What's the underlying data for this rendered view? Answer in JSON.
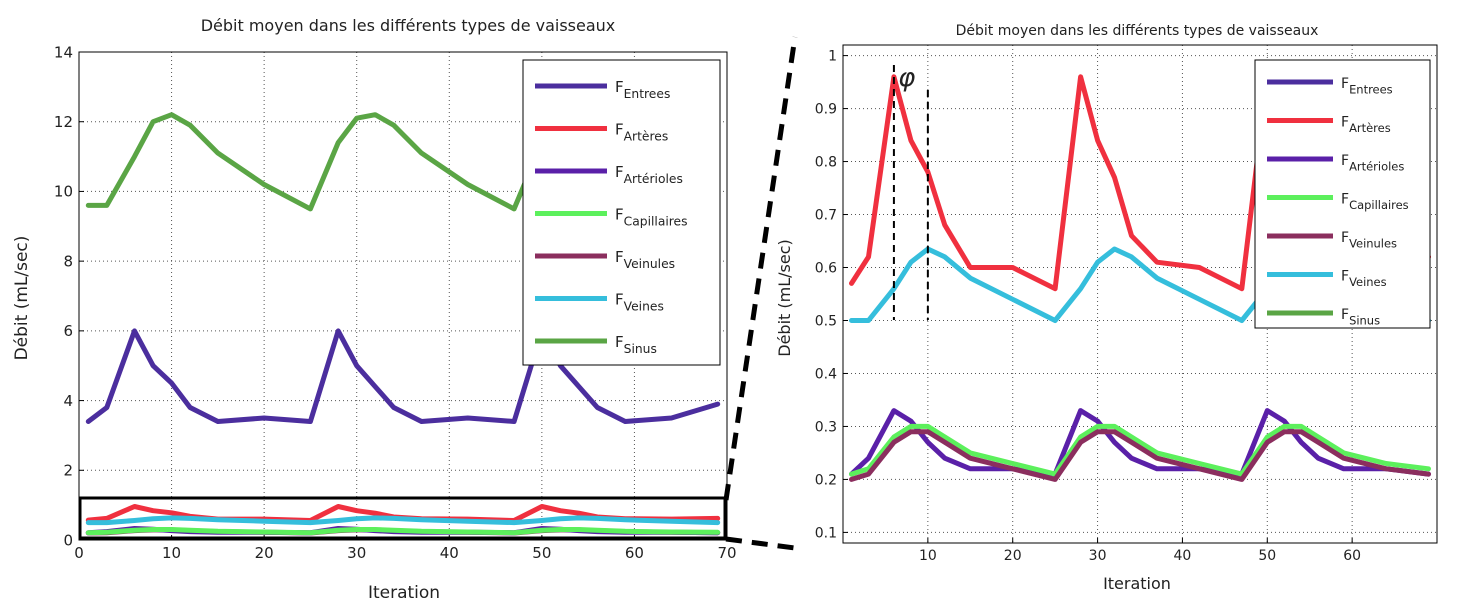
{
  "colors": {
    "entrees": "#4B2E9E",
    "arteres": "#F0303F",
    "arterioles": "#5A20A8",
    "capillaires": "#5CF05C",
    "veinules": "#8B2E5E",
    "veines": "#35BEDC",
    "sinus": "#5AA545"
  },
  "chart_data": [
    {
      "type": "line",
      "title": "Débit moyen dans les différents types de vaisseaux",
      "xlabel": "Iteration",
      "ylabel": "Débit (mL/sec)",
      "xlim": [
        0,
        70
      ],
      "ylim": [
        0,
        14
      ],
      "xticks": [
        0,
        10,
        20,
        30,
        40,
        50,
        60,
        70
      ],
      "yticks": [
        0,
        2,
        4,
        6,
        8,
        10,
        12,
        14
      ],
      "grid": true,
      "legend_position": "top-right",
      "x": [
        1,
        3,
        6,
        8,
        10,
        12,
        15,
        20,
        25,
        28,
        30,
        32,
        34,
        37,
        42,
        47,
        50,
        52,
        54,
        56,
        59,
        64,
        69
      ],
      "series": [
        {
          "name": "F",
          "sub": "Entrees",
          "color_key": "entrees",
          "values": [
            3.4,
            3.8,
            6.0,
            5.0,
            4.5,
            3.8,
            3.4,
            3.5,
            3.4,
            6.0,
            5.0,
            4.4,
            3.8,
            3.4,
            3.5,
            3.4,
            6.0,
            5.0,
            4.4,
            3.8,
            3.4,
            3.5,
            3.9
          ]
        },
        {
          "name": "F",
          "sub": "Artères",
          "color_key": "arteres",
          "values": [
            0.57,
            0.62,
            0.96,
            0.84,
            0.78,
            0.68,
            0.6,
            0.6,
            0.56,
            0.96,
            0.84,
            0.77,
            0.66,
            0.61,
            0.6,
            0.56,
            0.96,
            0.84,
            0.77,
            0.66,
            0.61,
            0.6,
            0.62
          ]
        },
        {
          "name": "F",
          "sub": "Artérioles",
          "color_key": "arterioles",
          "values": [
            0.21,
            0.24,
            0.33,
            0.31,
            0.27,
            0.24,
            0.22,
            0.22,
            0.21,
            0.33,
            0.31,
            0.27,
            0.24,
            0.22,
            0.22,
            0.21,
            0.33,
            0.31,
            0.27,
            0.24,
            0.22,
            0.22,
            0.21
          ]
        },
        {
          "name": "F",
          "sub": "Capillaires",
          "color_key": "capillaires",
          "values": [
            0.21,
            0.22,
            0.28,
            0.3,
            0.3,
            0.28,
            0.25,
            0.23,
            0.21,
            0.28,
            0.3,
            0.3,
            0.28,
            0.25,
            0.23,
            0.21,
            0.28,
            0.3,
            0.3,
            0.28,
            0.25,
            0.23,
            0.22
          ]
        },
        {
          "name": "F",
          "sub": "Veinules",
          "color_key": "veinules",
          "values": [
            0.2,
            0.21,
            0.27,
            0.29,
            0.29,
            0.27,
            0.24,
            0.22,
            0.2,
            0.27,
            0.29,
            0.29,
            0.27,
            0.24,
            0.22,
            0.2,
            0.27,
            0.29,
            0.29,
            0.27,
            0.24,
            0.22,
            0.21
          ]
        },
        {
          "name": "F",
          "sub": "Veines",
          "color_key": "veines",
          "values": [
            0.5,
            0.5,
            0.56,
            0.61,
            0.635,
            0.62,
            0.58,
            0.54,
            0.5,
            0.56,
            0.61,
            0.635,
            0.62,
            0.58,
            0.54,
            0.5,
            0.56,
            0.61,
            0.635,
            0.62,
            0.58,
            0.54,
            0.5
          ]
        },
        {
          "name": "F",
          "sub": "Sinus",
          "color_key": "sinus",
          "values": [
            9.6,
            9.6,
            11.0,
            12.0,
            12.2,
            11.9,
            11.1,
            10.2,
            9.5,
            11.4,
            12.1,
            12.2,
            11.9,
            11.1,
            10.2,
            9.5,
            11.4,
            12.1,
            12.2,
            11.9,
            11.1,
            10.2,
            9.6
          ]
        }
      ]
    },
    {
      "type": "line",
      "title": "Débit moyen dans les différents types de vaisseaux",
      "xlabel": "Iteration",
      "ylabel": "Débit (mL/sec)",
      "xlim": [
        0,
        70
      ],
      "ylim": [
        0.08,
        1.02
      ],
      "xticks": [
        10,
        20,
        30,
        40,
        50,
        60
      ],
      "yticks": [
        0.1,
        0.2,
        0.3,
        0.4,
        0.5,
        0.6,
        0.7,
        0.8,
        0.9,
        1
      ],
      "grid": true,
      "legend_position": "top-right",
      "annotation": "φ",
      "annotation_x": [
        6,
        10
      ],
      "x": [
        1,
        3,
        6,
        8,
        10,
        12,
        15,
        20,
        25,
        28,
        30,
        32,
        34,
        37,
        42,
        47,
        50,
        52,
        54,
        56,
        59,
        64,
        69
      ],
      "series_ref": "same as panel 1 (Sinus off-scale)"
    }
  ]
}
